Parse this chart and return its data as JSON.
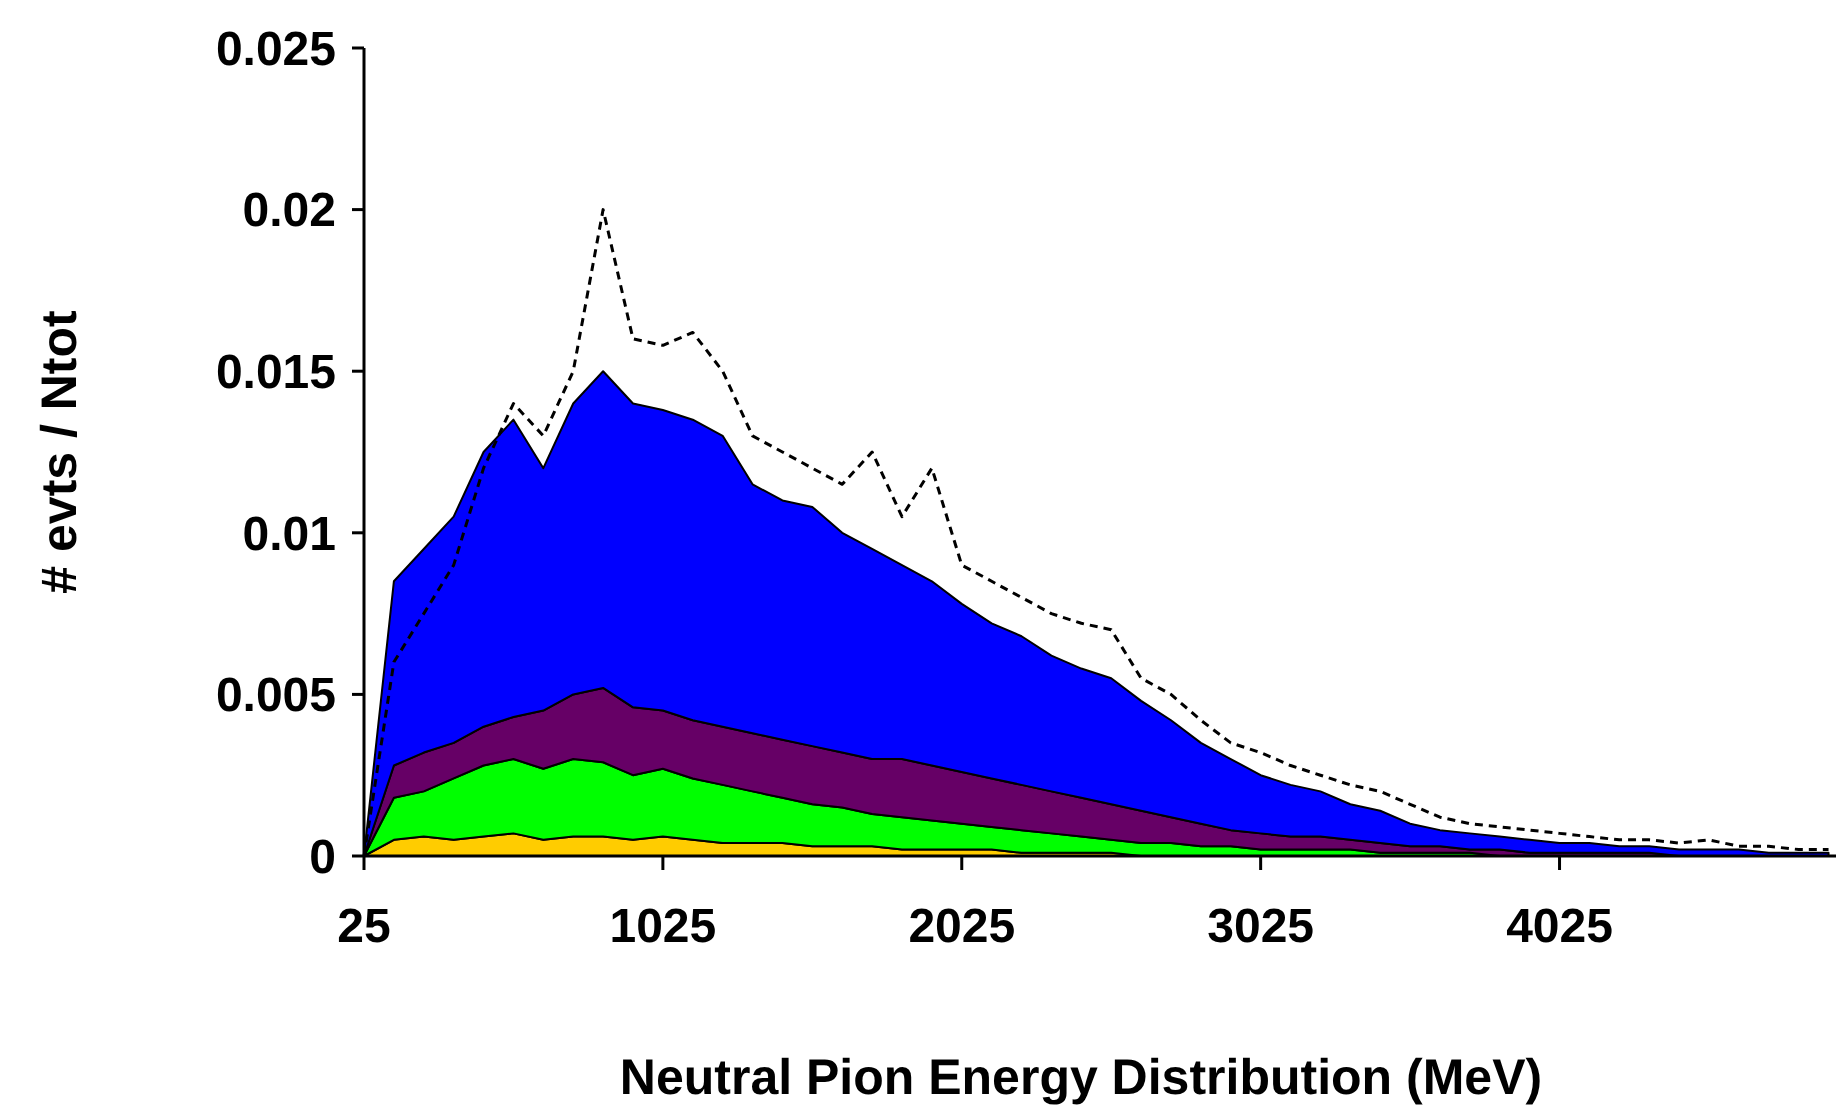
{
  "chart_data": {
    "type": "area",
    "stacked": true,
    "xlabel": "Neutral Pion Energy Distribution (MeV)",
    "ylabel": "# evts / Ntot",
    "x": [
      25,
      125,
      225,
      325,
      425,
      525,
      625,
      725,
      825,
      925,
      1025,
      1125,
      1225,
      1325,
      1425,
      1525,
      1625,
      1725,
      1825,
      1925,
      2025,
      2125,
      2225,
      2325,
      2425,
      2525,
      2625,
      2725,
      2825,
      2925,
      3025,
      3125,
      3225,
      3325,
      3425,
      3525,
      3625,
      3725,
      3825,
      3925,
      4025,
      4125,
      4225,
      4325,
      4425,
      4525,
      4625,
      4725,
      4825,
      4925
    ],
    "xlim": [
      25,
      4950
    ],
    "xticks": [
      25,
      1025,
      2025,
      3025,
      4025
    ],
    "ylim": [
      0,
      0.025
    ],
    "yticks": [
      0,
      0.005,
      0.01,
      0.015,
      0.02,
      0.025
    ],
    "grid": false,
    "series": [
      {
        "color": "#ffcc00",
        "values": [
          0,
          0.0005,
          0.0006,
          0.0005,
          0.0006,
          0.0007,
          0.0005,
          0.0006,
          0.0006,
          0.0005,
          0.0006,
          0.0005,
          0.0004,
          0.0004,
          0.0004,
          0.0003,
          0.0003,
          0.0003,
          0.0002,
          0.0002,
          0.0002,
          0.0002,
          0.0001,
          0.0001,
          0.0001,
          0.0001,
          0,
          0,
          0,
          0,
          0,
          0,
          0,
          0,
          0,
          0,
          0,
          0,
          0,
          0,
          0,
          0,
          0,
          0,
          0,
          0,
          0,
          0,
          0,
          0
        ]
      },
      {
        "color": "#00ff00",
        "values": [
          0,
          0.0013,
          0.0014,
          0.0019,
          0.0022,
          0.0023,
          0.0022,
          0.0024,
          0.0023,
          0.002,
          0.0021,
          0.0019,
          0.0018,
          0.0016,
          0.0014,
          0.0013,
          0.0012,
          0.001,
          0.001,
          0.0009,
          0.0008,
          0.0007,
          0.0007,
          0.0006,
          0.0005,
          0.0004,
          0.0004,
          0.0004,
          0.0003,
          0.0003,
          0.0002,
          0.0002,
          0.0002,
          0.0002,
          0.0001,
          0.0001,
          0.0001,
          0.0001,
          0,
          0,
          0,
          0,
          0,
          0,
          0,
          0,
          0,
          0,
          0,
          0
        ]
      },
      {
        "color": "#660066",
        "values": [
          0,
          0.001,
          0.0012,
          0.0011,
          0.0012,
          0.0013,
          0.0018,
          0.002,
          0.0023,
          0.0021,
          0.0018,
          0.0018,
          0.0018,
          0.0018,
          0.0018,
          0.0018,
          0.0017,
          0.0017,
          0.0018,
          0.0017,
          0.0016,
          0.0015,
          0.0014,
          0.0013,
          0.0012,
          0.0011,
          0.001,
          0.0008,
          0.0007,
          0.0005,
          0.0005,
          0.0004,
          0.0004,
          0.0003,
          0.0003,
          0.0002,
          0.0002,
          0.0001,
          0.0002,
          0.0001,
          0.0001,
          0.0001,
          0.0001,
          0.0001,
          0,
          0,
          0,
          0,
          0,
          0
        ]
      },
      {
        "color": "#0000ff",
        "values": [
          0,
          0.0057,
          0.0063,
          0.007,
          0.0085,
          0.0092,
          0.0075,
          0.009,
          0.0098,
          0.0094,
          0.0093,
          0.0093,
          0.009,
          0.0077,
          0.0074,
          0.0074,
          0.0068,
          0.0065,
          0.006,
          0.0057,
          0.0052,
          0.0048,
          0.0046,
          0.0042,
          0.004,
          0.0039,
          0.0034,
          0.003,
          0.0025,
          0.0022,
          0.0018,
          0.0016,
          0.0014,
          0.0011,
          0.001,
          0.0007,
          0.0005,
          0.0005,
          0.0004,
          0.0004,
          0.0003,
          0.0003,
          0.0002,
          0.0002,
          0.0002,
          0.0002,
          0.0002,
          0.0001,
          0.0001,
          0.0001
        ]
      },
      {
        "type": "line",
        "color": "#000000",
        "line_style": "dashed",
        "values": [
          0,
          0.006,
          0.0075,
          0.009,
          0.012,
          0.014,
          0.013,
          0.015,
          0.02,
          0.016,
          0.0158,
          0.0162,
          0.015,
          0.013,
          0.0125,
          0.012,
          0.0115,
          0.0125,
          0.0105,
          0.012,
          0.009,
          0.0085,
          0.008,
          0.0075,
          0.0072,
          0.007,
          0.0055,
          0.005,
          0.0042,
          0.0035,
          0.0032,
          0.0028,
          0.0025,
          0.0022,
          0.002,
          0.0016,
          0.0012,
          0.001,
          0.0009,
          0.0008,
          0.0007,
          0.0006,
          0.0005,
          0.0005,
          0.0004,
          0.0005,
          0.0003,
          0.0003,
          0.0002,
          0.0002
        ]
      }
    ]
  }
}
